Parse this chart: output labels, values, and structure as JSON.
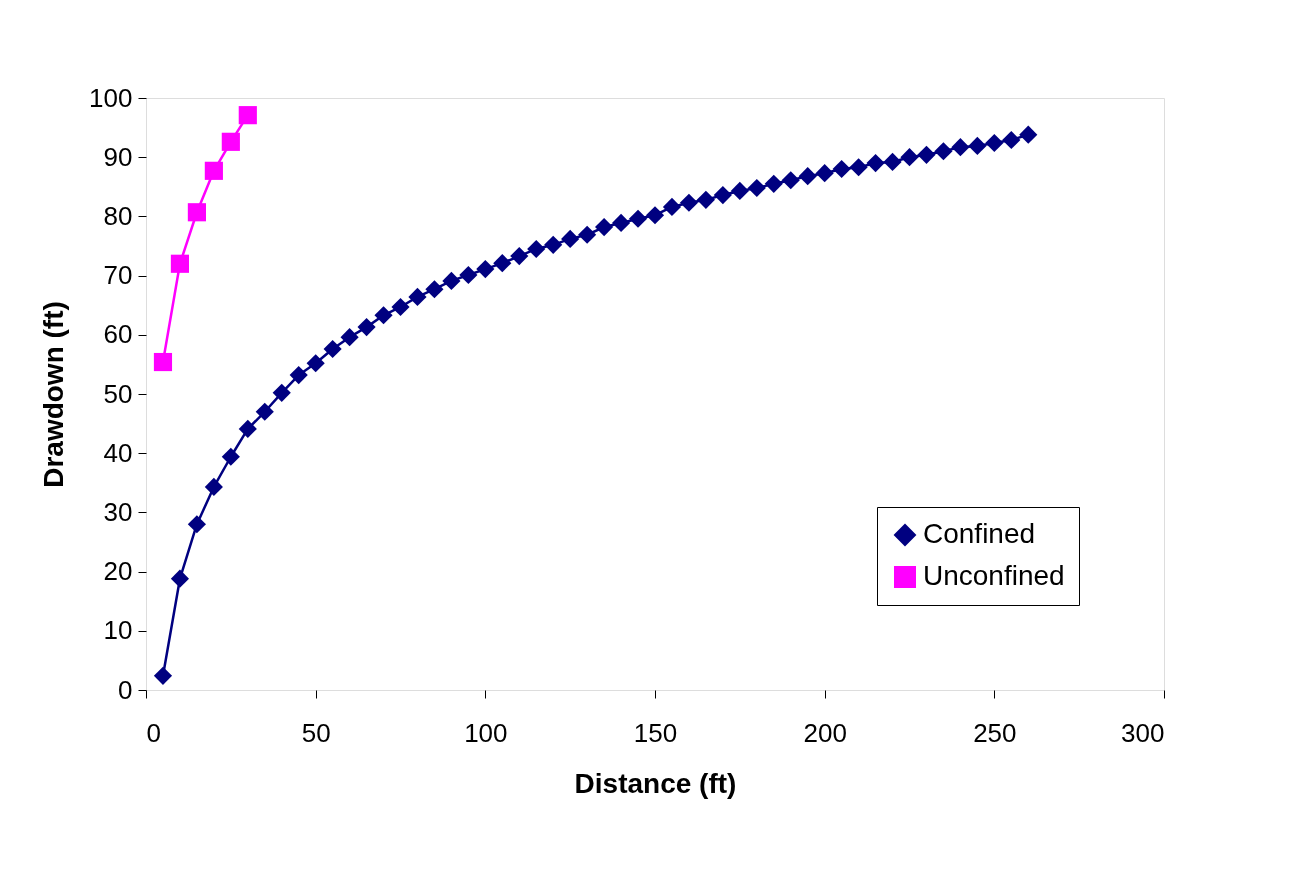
{
  "chart_data": {
    "type": "line",
    "xlabel": "Distance (ft)",
    "ylabel": "Drawdown (ft)",
    "xlim": [
      0,
      300
    ],
    "xticks": [
      0,
      50,
      100,
      150,
      200,
      250,
      300
    ],
    "ylim": [
      0,
      100
    ],
    "yticks": [
      0,
      10,
      20,
      30,
      40,
      50,
      60,
      70,
      80,
      90,
      100
    ],
    "grid": false,
    "legend": "bottom right",
    "line_style": "solid",
    "series": [
      {
        "name": "Confined",
        "color": "#000080",
        "marker": "diamond",
        "x": [
          5,
          10,
          15,
          20,
          25,
          30,
          35,
          40,
          45,
          50,
          55,
          60,
          65,
          70,
          75,
          80,
          85,
          90,
          95,
          100,
          105,
          110,
          115,
          120,
          125,
          130,
          135,
          140,
          145,
          150,
          155,
          160,
          165,
          170,
          175,
          180,
          185,
          190,
          195,
          200,
          205,
          210,
          215,
          220,
          225,
          230,
          235,
          240,
          245,
          250,
          255,
          260
        ],
        "values": [
          2.4,
          18.8,
          28,
          34.3,
          39.4,
          44.1,
          47,
          50.2,
          53.2,
          55.2,
          57.6,
          59.6,
          61.3,
          63.3,
          64.7,
          66.4,
          67.7,
          69.1,
          70.1,
          71.1,
          72.1,
          73.3,
          74.5,
          75.2,
          76.2,
          76.9,
          78.2,
          78.9,
          79.6,
          80.2,
          81.6,
          82.3,
          82.8,
          83.6,
          84.3,
          84.8,
          85.5,
          86.1,
          86.8,
          87.3,
          88,
          88.3,
          89,
          89.2,
          90,
          90.4,
          91,
          91.7,
          91.9,
          92.4,
          92.9,
          93.8
        ]
      },
      {
        "name": "Unconfined",
        "color": "#ff00ff",
        "marker": "square",
        "x": [
          5,
          10,
          15,
          20,
          25,
          30
        ],
        "values": [
          55.4,
          72,
          80.7,
          87.7,
          92.6,
          97.1
        ]
      }
    ]
  }
}
